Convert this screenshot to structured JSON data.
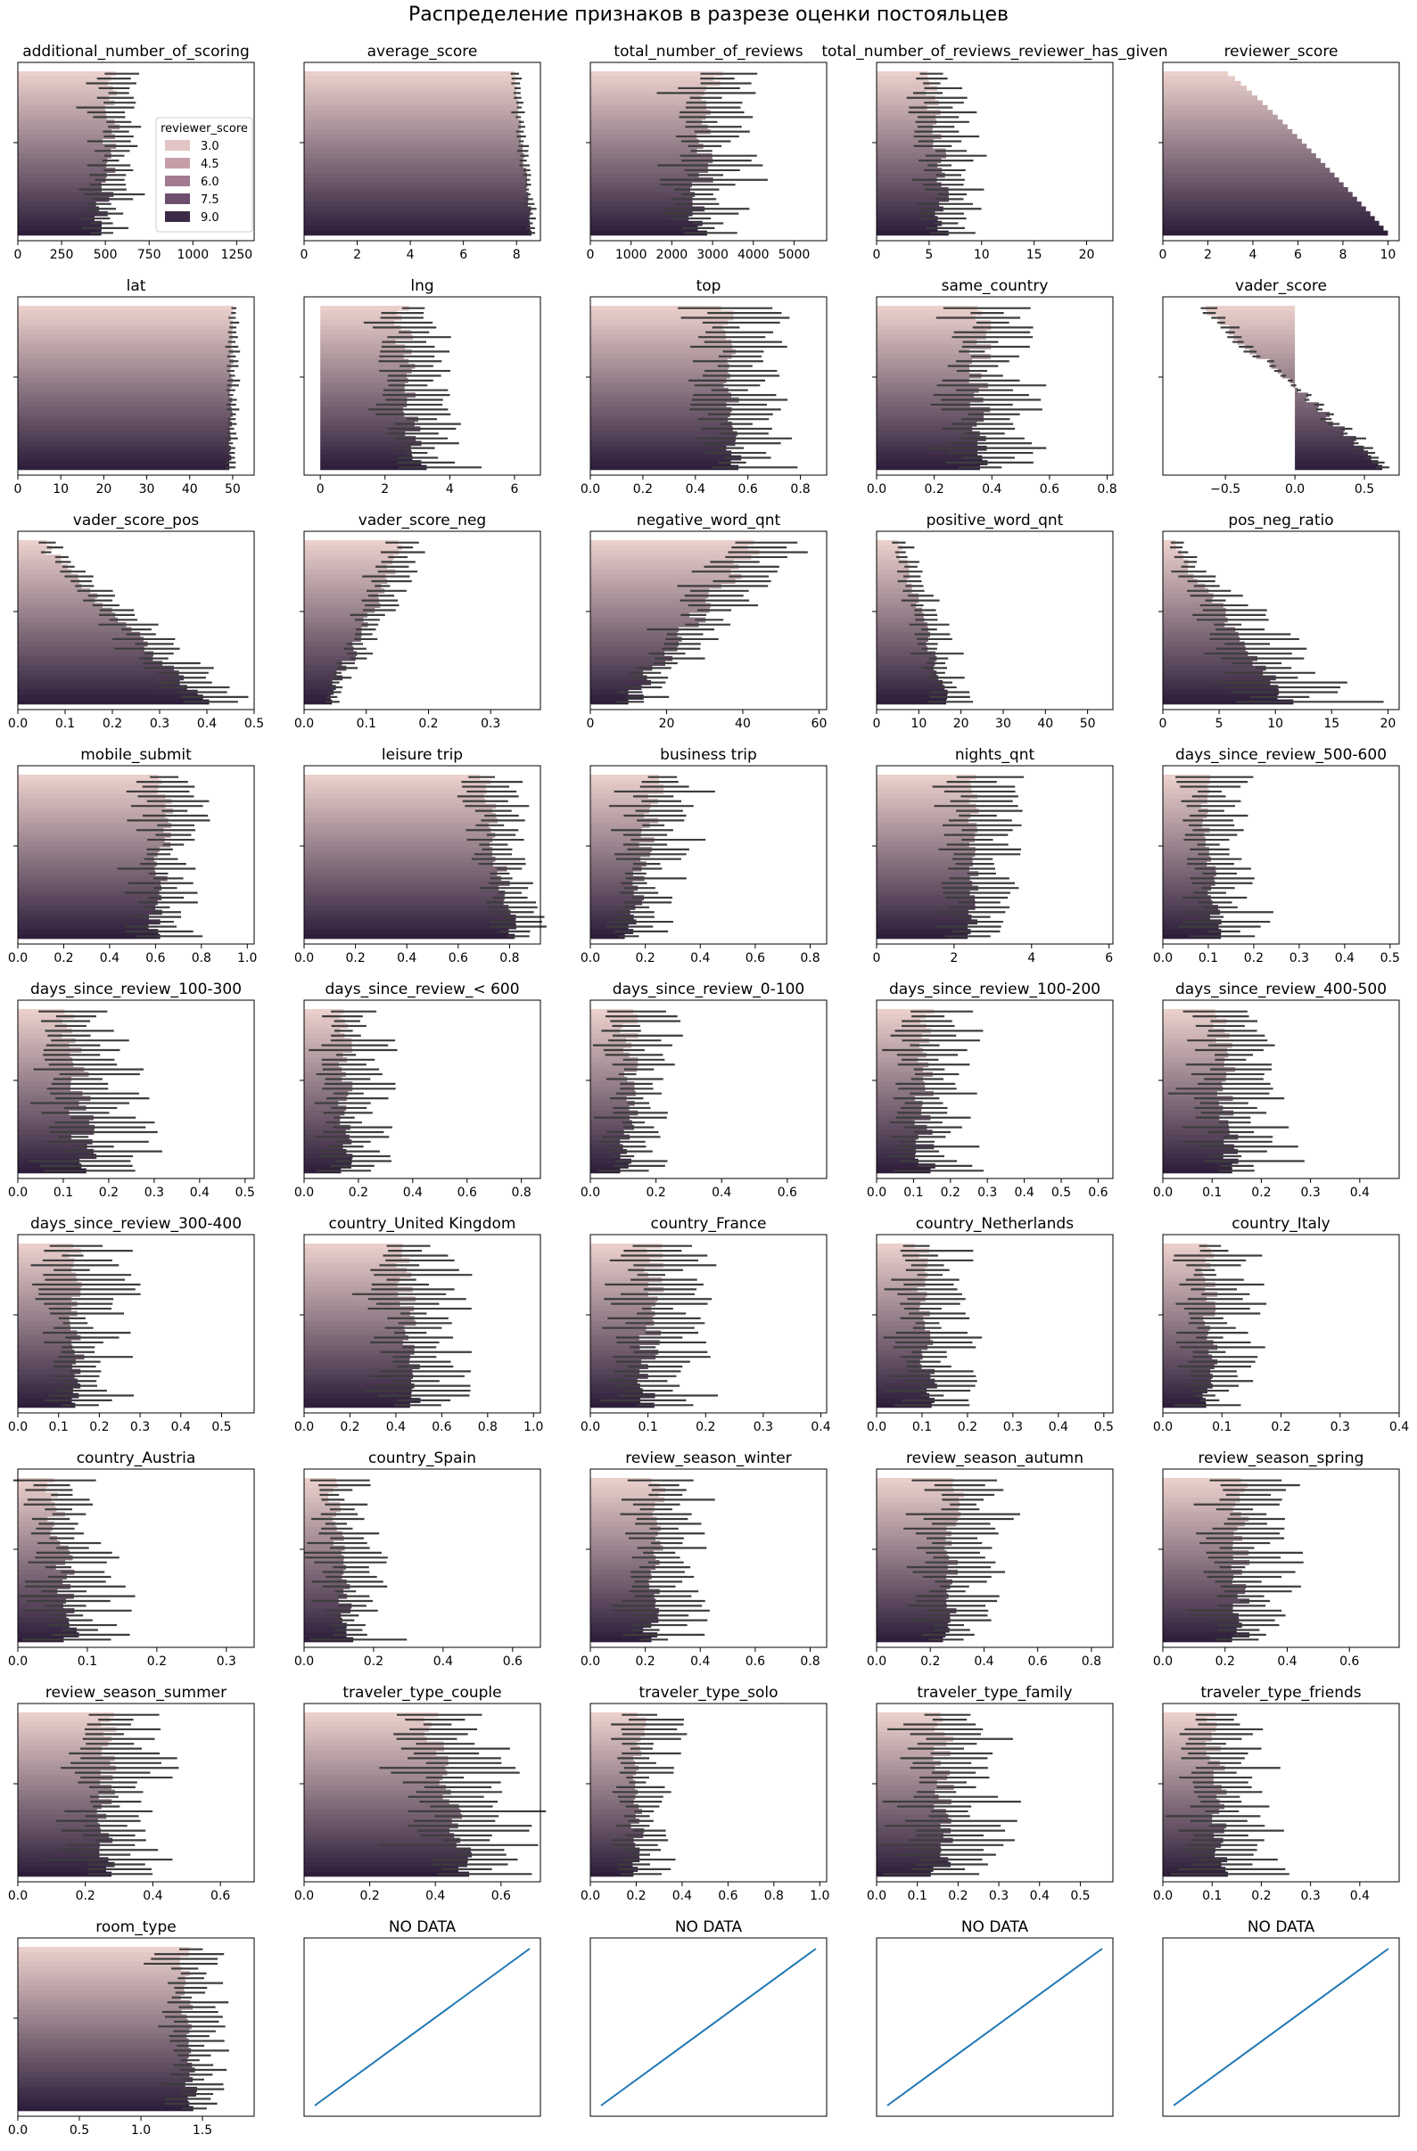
{
  "figure_title": "Распределение признаков в разрезе оценки постояльцев",
  "legend": {
    "title": "reviewer_score",
    "entries": [
      {
        "label": "3.0",
        "color": "#e3c4c4"
      },
      {
        "label": "4.5",
        "color": "#c69ea8"
      },
      {
        "label": "6.0",
        "color": "#a27a91"
      },
      {
        "label": "7.5",
        "color": "#6e4e6d"
      },
      {
        "label": "9.0",
        "color": "#3b2a46"
      }
    ]
  },
  "colors": {
    "score_light": "#eacfcb",
    "score_dark": "#2e1e3b",
    "errbar": "#3d3d3d",
    "line": "#1f77b4"
  },
  "chart_data": [
    {
      "type": "bar",
      "orientation": "horizontal",
      "title": "additional_number_of_scoring",
      "xlim": [
        0,
        1350
      ],
      "xticks": [
        "0",
        "250",
        "500",
        "750",
        "1000",
        "1250"
      ],
      "mean_first": 560,
      "mean_last": 480,
      "jitter": 50,
      "err": 0.2,
      "legend": true
    },
    {
      "type": "bar",
      "orientation": "horizontal",
      "title": "average_score",
      "xlim": [
        0,
        8.9
      ],
      "xticks": [
        "0",
        "2",
        "4",
        "6",
        "8"
      ],
      "mean_first": 7.9,
      "mean_last": 8.6,
      "jitter": 0.06,
      "err": 0.02
    },
    {
      "type": "bar",
      "orientation": "horizontal",
      "title": "total_number_of_reviews",
      "xlim": [
        0,
        5800
      ],
      "xticks": [
        "0",
        "1000",
        "2000",
        "3000",
        "4000",
        "5000"
      ],
      "mean_first": 3000,
      "mean_last": 2600,
      "jitter": 280,
      "err": 0.28
    },
    {
      "type": "bar",
      "orientation": "horizontal",
      "title": "total_number_of_reviews_reviewer_has_given",
      "xlim": [
        0,
        22.5
      ],
      "xticks": [
        "0",
        "5",
        "10",
        "15",
        "20"
      ],
      "mean_first": 5.3,
      "mean_last": 6.5,
      "jitter": 0.8,
      "err": 0.35
    },
    {
      "type": "bar",
      "orientation": "horizontal",
      "title": "reviewer_score",
      "xlim": [
        0,
        10.5
      ],
      "xticks": [
        "0",
        "2",
        "4",
        "6",
        "8",
        "10"
      ],
      "mean_first": 2.9,
      "mean_last": 10,
      "jitter": 0,
      "err": 0
    },
    {
      "type": "bar",
      "orientation": "horizontal",
      "title": "lat",
      "xlim": [
        0,
        55
      ],
      "xticks": [
        "0",
        "10",
        "20",
        "30",
        "40",
        "50"
      ],
      "mean_first": 50,
      "mean_last": 49.5,
      "jitter": 0.5,
      "err": 0.02
    },
    {
      "type": "bar",
      "orientation": "horizontal",
      "title": "lng",
      "xlim": [
        -0.5,
        6.8
      ],
      "xticks": [
        "0",
        "2",
        "4",
        "6"
      ],
      "mean_first": 2.5,
      "mean_last": 3.0,
      "jitter": 0.3,
      "err": 0.35
    },
    {
      "type": "bar",
      "orientation": "horizontal",
      "title": "top",
      "xlim": [
        0,
        0.9
      ],
      "xticks": [
        "0.0",
        "0.2",
        "0.4",
        "0.6",
        "0.8"
      ],
      "mean_first": 0.52,
      "mean_last": 0.55,
      "jitter": 0.03,
      "err": 0.25
    },
    {
      "type": "bar",
      "orientation": "horizontal",
      "title": "same_country",
      "xlim": [
        0,
        0.82
      ],
      "xticks": [
        "0.0",
        "0.2",
        "0.4",
        "0.6",
        "0.8"
      ],
      "mean_first": 0.36,
      "mean_last": 0.36,
      "jitter": 0.04,
      "err": 0.35
    },
    {
      "type": "bar",
      "orientation": "horizontal",
      "title": "vader_score",
      "xlim": [
        -0.95,
        0.75
      ],
      "xticks": [
        "−0.5",
        "0.0",
        "0.5"
      ],
      "mean_first": -0.65,
      "mean_last": 0.65,
      "jitter": 0.04,
      "err": 0.08
    },
    {
      "type": "bar",
      "orientation": "horizontal",
      "title": "vader_score_pos",
      "xlim": [
        0,
        0.5
      ],
      "xticks": [
        "0.0",
        "0.1",
        "0.2",
        "0.3",
        "0.4",
        "0.5"
      ],
      "mean_first": 0.05,
      "mean_last": 0.39,
      "jitter": 0.015,
      "err": 0.18
    },
    {
      "type": "bar",
      "orientation": "horizontal",
      "title": "vader_score_neg",
      "xlim": [
        0,
        0.38
      ],
      "xticks": [
        "0.0",
        "0.1",
        "0.2",
        "0.3"
      ],
      "mean_first": 0.16,
      "mean_last": 0.04,
      "jitter": 0.01,
      "err": 0.18
    },
    {
      "type": "bar",
      "orientation": "horizontal",
      "title": "negative_word_qnt",
      "xlim": [
        0,
        62
      ],
      "xticks": [
        "0",
        "20",
        "40",
        "60"
      ],
      "mean_first": 44,
      "mean_last": 10,
      "jitter": 3,
      "err": 0.25
    },
    {
      "type": "bar",
      "orientation": "horizontal",
      "title": "positive_word_qnt",
      "xlim": [
        0,
        56
      ],
      "xticks": [
        "0",
        "10",
        "20",
        "30",
        "40",
        "50"
      ],
      "mean_first": 5,
      "mean_last": 17,
      "jitter": 1,
      "err": 0.3
    },
    {
      "type": "bar",
      "orientation": "horizontal",
      "title": "pos_neg_ratio",
      "xlim": [
        0,
        21
      ],
      "xticks": [
        "0",
        "5",
        "10",
        "15",
        "20"
      ],
      "mean_first": 0.8,
      "mean_last": 11,
      "jitter": 0.6,
      "err": 0.5
    },
    {
      "type": "bar",
      "orientation": "horizontal",
      "title": "mobile_submit",
      "xlim": [
        0,
        1.03
      ],
      "xticks": [
        "0.0",
        "0.2",
        "0.4",
        "0.6",
        "0.8",
        "1.0"
      ],
      "mean_first": 0.65,
      "mean_last": 0.6,
      "jitter": 0.04,
      "err": 0.18
    },
    {
      "type": "bar",
      "orientation": "horizontal",
      "title": "leisure trip",
      "xlim": [
        0,
        0.92
      ],
      "xticks": [
        "0.0",
        "0.2",
        "0.4",
        "0.6",
        "0.8"
      ],
      "mean_first": 0.7,
      "mean_last": 0.82,
      "jitter": 0.03,
      "err": 0.12
    },
    {
      "type": "bar",
      "orientation": "horizontal",
      "title": "business trip",
      "xlim": [
        0,
        0.86
      ],
      "xticks": [
        "0.0",
        "0.2",
        "0.4",
        "0.6",
        "0.8"
      ],
      "mean_first": 0.25,
      "mean_last": 0.14,
      "jitter": 0.03,
      "err": 0.5
    },
    {
      "type": "bar",
      "orientation": "horizontal",
      "title": "nights_qnt",
      "xlim": [
        0,
        6.1
      ],
      "xticks": [
        "0",
        "2",
        "4",
        "6"
      ],
      "mean_first": 2.5,
      "mean_last": 2.5,
      "jitter": 0.15,
      "err": 0.3
    },
    {
      "type": "bar",
      "orientation": "horizontal",
      "title": "days_since_review_500-600",
      "xlim": [
        0,
        0.52
      ],
      "xticks": [
        "0.0",
        "0.1",
        "0.2",
        "0.3",
        "0.4",
        "0.5"
      ],
      "mean_first": 0.09,
      "mean_last": 0.12,
      "jitter": 0.015,
      "err": 0.6
    },
    {
      "type": "bar",
      "orientation": "horizontal",
      "title": "days_since_review_100-300",
      "xlim": [
        0,
        0.52
      ],
      "xticks": [
        "0.0",
        "0.1",
        "0.2",
        "0.3",
        "0.4",
        "0.5"
      ],
      "mean_first": 0.12,
      "mean_last": 0.15,
      "jitter": 0.03,
      "err": 0.6
    },
    {
      "type": "bar",
      "orientation": "horizontal",
      "title": "days_since_review_< 600",
      "xlim": [
        0,
        0.87
      ],
      "xticks": [
        "0.0",
        "0.2",
        "0.4",
        "0.6",
        "0.8"
      ],
      "mean_first": 0.15,
      "mean_last": 0.15,
      "jitter": 0.03,
      "err": 0.6
    },
    {
      "type": "bar",
      "orientation": "horizontal",
      "title": "days_since_review_0-100",
      "xlim": [
        0,
        0.72
      ],
      "xticks": [
        "0.0",
        "0.2",
        "0.4",
        "0.6"
      ],
      "mean_first": 0.12,
      "mean_last": 0.12,
      "jitter": 0.03,
      "err": 0.6
    },
    {
      "type": "bar",
      "orientation": "horizontal",
      "title": "days_since_review_100-200",
      "xlim": [
        0,
        0.64
      ],
      "xticks": [
        "0.0",
        "0.1",
        "0.2",
        "0.3",
        "0.4",
        "0.5",
        "0.6"
      ],
      "mean_first": 0.13,
      "mean_last": 0.13,
      "jitter": 0.03,
      "err": 0.6
    },
    {
      "type": "bar",
      "orientation": "horizontal",
      "title": "days_since_review_400-500",
      "xlim": [
        0,
        0.48
      ],
      "xticks": [
        "0.0",
        "0.1",
        "0.2",
        "0.3",
        "0.4"
      ],
      "mean_first": 0.12,
      "mean_last": 0.14,
      "jitter": 0.02,
      "err": 0.6
    },
    {
      "type": "bar",
      "orientation": "horizontal",
      "title": "days_since_review_300-400",
      "xlim": [
        0,
        0.58
      ],
      "xticks": [
        "0.0",
        "0.1",
        "0.2",
        "0.3",
        "0.4",
        "0.5"
      ],
      "mean_first": 0.14,
      "mean_last": 0.15,
      "jitter": 0.02,
      "err": 0.6
    },
    {
      "type": "bar",
      "orientation": "horizontal",
      "title": "country_United Kingdom",
      "xlim": [
        0,
        1.03
      ],
      "xticks": [
        "0.0",
        "0.2",
        "0.4",
        "0.6",
        "0.8",
        "1.0"
      ],
      "mean_first": 0.42,
      "mean_last": 0.5,
      "jitter": 0.04,
      "err": 0.35
    },
    {
      "type": "bar",
      "orientation": "horizontal",
      "title": "country_France",
      "xlim": [
        0,
        0.41
      ],
      "xticks": [
        "0.0",
        "0.1",
        "0.2",
        "0.3",
        "0.4"
      ],
      "mean_first": 0.11,
      "mean_last": 0.1,
      "jitter": 0.02,
      "err": 0.6
    },
    {
      "type": "bar",
      "orientation": "horizontal",
      "title": "country_Netherlands",
      "xlim": [
        0,
        0.52
      ],
      "xticks": [
        "0.0",
        "0.1",
        "0.2",
        "0.3",
        "0.4",
        "0.5"
      ],
      "mean_first": 0.1,
      "mean_last": 0.12,
      "jitter": 0.02,
      "err": 0.6
    },
    {
      "type": "bar",
      "orientation": "horizontal",
      "title": "country_Italy",
      "xlim": [
        0,
        0.4
      ],
      "xticks": [
        "0.0",
        "0.1",
        "0.2",
        "0.3",
        "0.4"
      ],
      "mean_first": 0.08,
      "mean_last": 0.08,
      "jitter": 0.015,
      "err": 0.6
    },
    {
      "type": "bar",
      "orientation": "horizontal",
      "title": "country_Austria",
      "xlim": [
        0,
        0.34
      ],
      "xticks": [
        "0.0",
        "0.1",
        "0.2",
        "0.3"
      ],
      "mean_first": 0.05,
      "mean_last": 0.08,
      "jitter": 0.015,
      "err": 0.7
    },
    {
      "type": "bar",
      "orientation": "horizontal",
      "title": "country_Spain",
      "xlim": [
        0,
        0.68
      ],
      "xticks": [
        "0.0",
        "0.2",
        "0.4",
        "0.6"
      ],
      "mean_first": 0.08,
      "mean_last": 0.13,
      "jitter": 0.02,
      "err": 0.7
    },
    {
      "type": "bar",
      "orientation": "horizontal",
      "title": "review_season_winter",
      "xlim": [
        0,
        0.86
      ],
      "xticks": [
        "0.0",
        "0.2",
        "0.4",
        "0.6",
        "0.8"
      ],
      "mean_first": 0.25,
      "mean_last": 0.22,
      "jitter": 0.03,
      "err": 0.5
    },
    {
      "type": "bar",
      "orientation": "horizontal",
      "title": "review_season_autumn",
      "xlim": [
        0,
        0.88
      ],
      "xticks": [
        "0.0",
        "0.2",
        "0.4",
        "0.6",
        "0.8"
      ],
      "mean_first": 0.3,
      "mean_last": 0.26,
      "jitter": 0.03,
      "err": 0.45
    },
    {
      "type": "bar",
      "orientation": "horizontal",
      "title": "review_season_spring",
      "xlim": [
        0,
        0.76
      ],
      "xticks": [
        "0.0",
        "0.2",
        "0.4",
        "0.6"
      ],
      "mean_first": 0.25,
      "mean_last": 0.25,
      "jitter": 0.03,
      "err": 0.45
    },
    {
      "type": "bar",
      "orientation": "horizontal",
      "title": "review_season_summer",
      "xlim": [
        0,
        0.7
      ],
      "xticks": [
        "0.0",
        "0.2",
        "0.4",
        "0.6"
      ],
      "mean_first": 0.27,
      "mean_last": 0.26,
      "jitter": 0.03,
      "err": 0.45
    },
    {
      "type": "bar",
      "orientation": "horizontal",
      "title": "traveler_type_couple",
      "xlim": [
        0,
        0.72
      ],
      "xticks": [
        "0.0",
        "0.2",
        "0.4",
        "0.6"
      ],
      "mean_first": 0.38,
      "mean_last": 0.5,
      "jitter": 0.03,
      "err": 0.35
    },
    {
      "type": "bar",
      "orientation": "horizontal",
      "title": "traveler_type_solo",
      "xlim": [
        0,
        1.03
      ],
      "xticks": [
        "0.0",
        "0.2",
        "0.4",
        "0.6",
        "0.8",
        "1.0"
      ],
      "mean_first": 0.22,
      "mean_last": 0.2,
      "jitter": 0.03,
      "err": 0.5
    },
    {
      "type": "bar",
      "orientation": "horizontal",
      "title": "traveler_type_family",
      "xlim": [
        0,
        0.58
      ],
      "xticks": [
        "0.0",
        "0.1",
        "0.2",
        "0.3",
        "0.4",
        "0.5"
      ],
      "mean_first": 0.16,
      "mean_last": 0.16,
      "jitter": 0.03,
      "err": 0.6
    },
    {
      "type": "bar",
      "orientation": "horizontal",
      "title": "traveler_type_friends",
      "xlim": [
        0,
        0.48
      ],
      "xticks": [
        "0.0",
        "0.1",
        "0.2",
        "0.3",
        "0.4"
      ],
      "mean_first": 0.1,
      "mean_last": 0.12,
      "jitter": 0.02,
      "err": 0.6
    },
    {
      "type": "bar",
      "orientation": "horizontal",
      "title": "room_type",
      "xlim": [
        0,
        1.92
      ],
      "xticks": [
        "0.0",
        "0.5",
        "1.0",
        "1.5"
      ],
      "mean_first": 1.35,
      "mean_last": 1.42,
      "jitter": 0.05,
      "err": 0.15
    },
    {
      "type": "line",
      "title": "NO DATA",
      "x": [
        0,
        1
      ],
      "y": [
        0,
        1
      ]
    },
    {
      "type": "line",
      "title": "NO DATA",
      "x": [
        0,
        1
      ],
      "y": [
        0,
        1
      ]
    },
    {
      "type": "line",
      "title": "NO DATA",
      "x": [
        0,
        1
      ],
      "y": [
        0,
        1
      ]
    },
    {
      "type": "line",
      "title": "NO DATA",
      "x": [
        0,
        1
      ],
      "y": [
        0,
        1
      ]
    }
  ]
}
